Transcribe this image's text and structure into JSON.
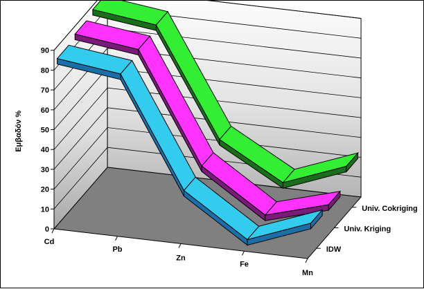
{
  "chart_data": {
    "type": "line",
    "style": "3d-ribbon",
    "title": "",
    "xlabel": "",
    "ylabel": "Εμβαδόν %",
    "ylim": [
      0,
      90
    ],
    "y_ticks": [
      "0",
      "10",
      "20",
      "30",
      "40",
      "50",
      "60",
      "70",
      "80",
      "90"
    ],
    "categories": [
      "Cd",
      "Pb",
      "Zn",
      "Fe",
      "Mn"
    ],
    "series": [
      {
        "name": "IDW",
        "values": [
          84,
          80,
          25,
          4,
          16
        ],
        "color": "#33ccee",
        "dark_color": "#1a6fa8"
      },
      {
        "name": "Univ. Kriging",
        "values": [
          86,
          82,
          27,
          6,
          15
        ],
        "color": "#ff33ff",
        "dark_color": "#7a1a7a"
      },
      {
        "name": "Univ. Cokriging",
        "values": [
          88,
          84,
          30,
          12,
          24
        ],
        "color": "#33ee33",
        "dark_color": "#1a6e1a"
      }
    ],
    "grid": true,
    "wall_color": "#c0c0c0",
    "floor_color": "#808080",
    "series_axis": "depth"
  }
}
